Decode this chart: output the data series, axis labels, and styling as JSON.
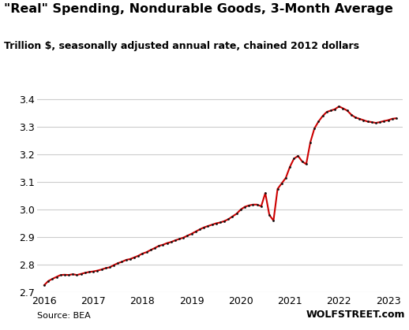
{
  "title": "\"Real\" Spending, Nondurable Goods, 3-Month Average",
  "subtitle": "Trillion $, seasonally adjusted annual rate, chained 2012 dollars",
  "source_left": "Source: BEA",
  "source_right": "WOLFSTREET.com",
  "line_color": "#cc0000",
  "marker_color": "#111111",
  "background_color": "#ffffff",
  "grid_color": "#cccccc",
  "ylim": [
    2.7,
    3.42
  ],
  "yticks": [
    2.7,
    2.8,
    2.9,
    3.0,
    3.1,
    3.2,
    3.3,
    3.4
  ],
  "x_start_year": 2015.85,
  "x_end_year": 2023.3,
  "data": [
    [
      2016.0,
      2.725
    ],
    [
      2016.083,
      2.74
    ],
    [
      2016.167,
      2.748
    ],
    [
      2016.25,
      2.755
    ],
    [
      2016.333,
      2.762
    ],
    [
      2016.417,
      2.763
    ],
    [
      2016.5,
      2.762
    ],
    [
      2016.583,
      2.765
    ],
    [
      2016.667,
      2.762
    ],
    [
      2016.75,
      2.766
    ],
    [
      2016.833,
      2.77
    ],
    [
      2016.917,
      2.773
    ],
    [
      2017.0,
      2.775
    ],
    [
      2017.083,
      2.778
    ],
    [
      2017.167,
      2.782
    ],
    [
      2017.25,
      2.787
    ],
    [
      2017.333,
      2.79
    ],
    [
      2017.417,
      2.798
    ],
    [
      2017.5,
      2.805
    ],
    [
      2017.583,
      2.81
    ],
    [
      2017.667,
      2.817
    ],
    [
      2017.75,
      2.82
    ],
    [
      2017.833,
      2.826
    ],
    [
      2017.917,
      2.832
    ],
    [
      2018.0,
      2.84
    ],
    [
      2018.083,
      2.845
    ],
    [
      2018.167,
      2.853
    ],
    [
      2018.25,
      2.86
    ],
    [
      2018.333,
      2.868
    ],
    [
      2018.417,
      2.872
    ],
    [
      2018.5,
      2.878
    ],
    [
      2018.583,
      2.882
    ],
    [
      2018.667,
      2.888
    ],
    [
      2018.75,
      2.893
    ],
    [
      2018.833,
      2.898
    ],
    [
      2018.917,
      2.905
    ],
    [
      2019.0,
      2.912
    ],
    [
      2019.083,
      2.92
    ],
    [
      2019.167,
      2.928
    ],
    [
      2019.25,
      2.935
    ],
    [
      2019.333,
      2.94
    ],
    [
      2019.417,
      2.945
    ],
    [
      2019.5,
      2.95
    ],
    [
      2019.583,
      2.953
    ],
    [
      2019.667,
      2.958
    ],
    [
      2019.75,
      2.965
    ],
    [
      2019.833,
      2.975
    ],
    [
      2019.917,
      2.985
    ],
    [
      2020.0,
      3.0
    ],
    [
      2020.083,
      3.01
    ],
    [
      2020.167,
      3.015
    ],
    [
      2020.25,
      3.018
    ],
    [
      2020.333,
      3.018
    ],
    [
      2020.417,
      3.012
    ],
    [
      2020.5,
      3.06
    ],
    [
      2020.583,
      2.98
    ],
    [
      2020.667,
      2.96
    ],
    [
      2020.75,
      3.075
    ],
    [
      2020.833,
      3.095
    ],
    [
      2020.917,
      3.115
    ],
    [
      2021.0,
      3.155
    ],
    [
      2021.083,
      3.185
    ],
    [
      2021.167,
      3.195
    ],
    [
      2021.25,
      3.175
    ],
    [
      2021.333,
      3.165
    ],
    [
      2021.417,
      3.245
    ],
    [
      2021.5,
      3.295
    ],
    [
      2021.583,
      3.32
    ],
    [
      2021.667,
      3.34
    ],
    [
      2021.75,
      3.355
    ],
    [
      2021.833,
      3.36
    ],
    [
      2021.917,
      3.365
    ],
    [
      2022.0,
      3.375
    ],
    [
      2022.083,
      3.368
    ],
    [
      2022.167,
      3.36
    ],
    [
      2022.25,
      3.345
    ],
    [
      2022.333,
      3.335
    ],
    [
      2022.417,
      3.33
    ],
    [
      2022.5,
      3.325
    ],
    [
      2022.583,
      3.32
    ],
    [
      2022.667,
      3.318
    ],
    [
      2022.75,
      3.315
    ],
    [
      2022.833,
      3.318
    ],
    [
      2022.917,
      3.322
    ],
    [
      2023.0,
      3.325
    ],
    [
      2023.083,
      3.33
    ],
    [
      2023.167,
      3.332
    ]
  ]
}
